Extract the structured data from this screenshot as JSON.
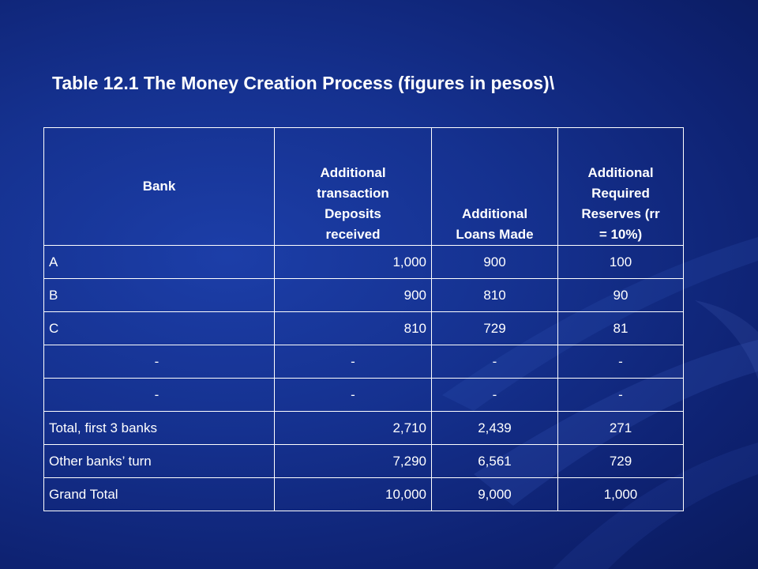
{
  "title": "Table 12.1  The Money Creation Process (figures in pesos)\\",
  "table": {
    "headers": {
      "bank": "Bank",
      "deposits_lines": [
        "Additional",
        "transaction",
        "Deposits",
        "received"
      ],
      "loans_lines": [
        "Additional",
        "Loans Made"
      ],
      "reserves_lines": [
        "Additional",
        "Required",
        "Reserves (rr",
        "= 10%)"
      ]
    },
    "rows": [
      {
        "bank": "A",
        "deposits": "1,000",
        "loans": "900",
        "reserves": "100"
      },
      {
        "bank": "B",
        "deposits": "900",
        "loans": "810",
        "reserves": "90"
      },
      {
        "bank": "C",
        "deposits": "810",
        "loans": "729",
        "reserves": "81"
      },
      {
        "bank": "-",
        "deposits": "-",
        "loans": "-",
        "reserves": "-"
      },
      {
        "bank": "-",
        "deposits": "-",
        "loans": "-",
        "reserves": "-"
      },
      {
        "bank": "Total, first 3 banks",
        "deposits": "2,710",
        "loans": "2,439",
        "reserves": "271"
      },
      {
        "bank": "Other banks’ turn",
        "deposits": "7,290",
        "loans": "6,561",
        "reserves": "729"
      },
      {
        "bank": "Grand Total",
        "deposits": "10,000",
        "loans": "9,000",
        "reserves": "1,000"
      }
    ]
  },
  "colors": {
    "background": "#15318f",
    "text": "#ffffff",
    "grid": "#ffffff"
  }
}
